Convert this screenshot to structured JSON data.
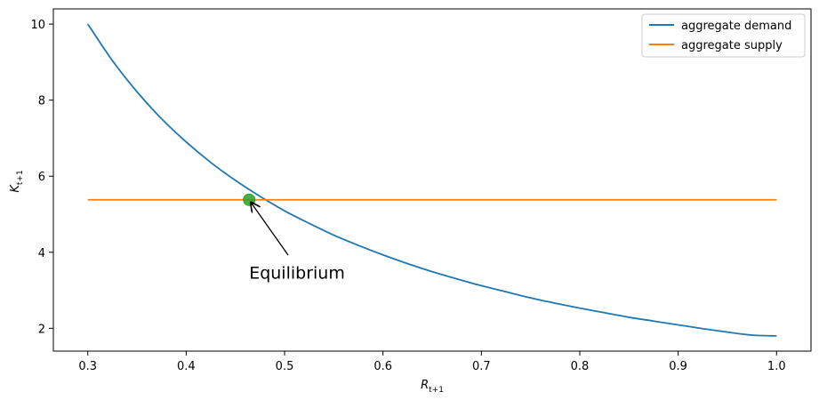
{
  "chart_data": {
    "type": "line",
    "title": "",
    "xlabel_main": "R",
    "xlabel_sub": "t+1",
    "ylabel_main": "K",
    "ylabel_sub": "t+1",
    "xlim": [
      0.265,
      1.035
    ],
    "ylim": [
      1.4,
      10.4
    ],
    "xticks": [
      0.3,
      0.4,
      0.5,
      0.6,
      0.7,
      0.8,
      0.9,
      1.0
    ],
    "xtick_labels": [
      "0.3",
      "0.4",
      "0.5",
      "0.6",
      "0.7",
      "0.8",
      "0.9",
      "1.0"
    ],
    "yticks": [
      2,
      4,
      6,
      8,
      10
    ],
    "ytick_labels": [
      "2",
      "4",
      "6",
      "8",
      "10"
    ],
    "grid": false,
    "legend_position": "top-right",
    "series": [
      {
        "name": "aggregate demand",
        "color": "#1f77b4",
        "x": [
          0.3,
          0.325,
          0.35,
          0.375,
          0.4,
          0.425,
          0.45,
          0.475,
          0.5,
          0.525,
          0.55,
          0.575,
          0.6,
          0.625,
          0.65,
          0.675,
          0.7,
          0.725,
          0.75,
          0.775,
          0.8,
          0.825,
          0.85,
          0.875,
          0.9,
          0.925,
          0.95,
          0.975,
          1.0
        ],
        "y": [
          10.0,
          9.04,
          8.22,
          7.51,
          6.9,
          6.36,
          5.89,
          5.47,
          5.09,
          4.76,
          4.45,
          4.18,
          3.93,
          3.7,
          3.49,
          3.3,
          3.12,
          2.96,
          2.8,
          2.66,
          2.53,
          2.41,
          2.29,
          2.19,
          2.09,
          1.99,
          1.9,
          1.82,
          1.8
        ]
      },
      {
        "name": "aggregate supply",
        "color": "#ff7f0e",
        "x": [
          0.3,
          1.0
        ],
        "y": [
          5.38,
          5.38
        ]
      }
    ],
    "equilibrium": {
      "x": 0.464,
      "y": 5.38,
      "color": "#2ca02c"
    },
    "annotation": {
      "text": "Equilibrium",
      "text_x": 0.464,
      "text_y": 3.45,
      "arrow_to_x": 0.464,
      "arrow_to_y": 5.38
    }
  }
}
